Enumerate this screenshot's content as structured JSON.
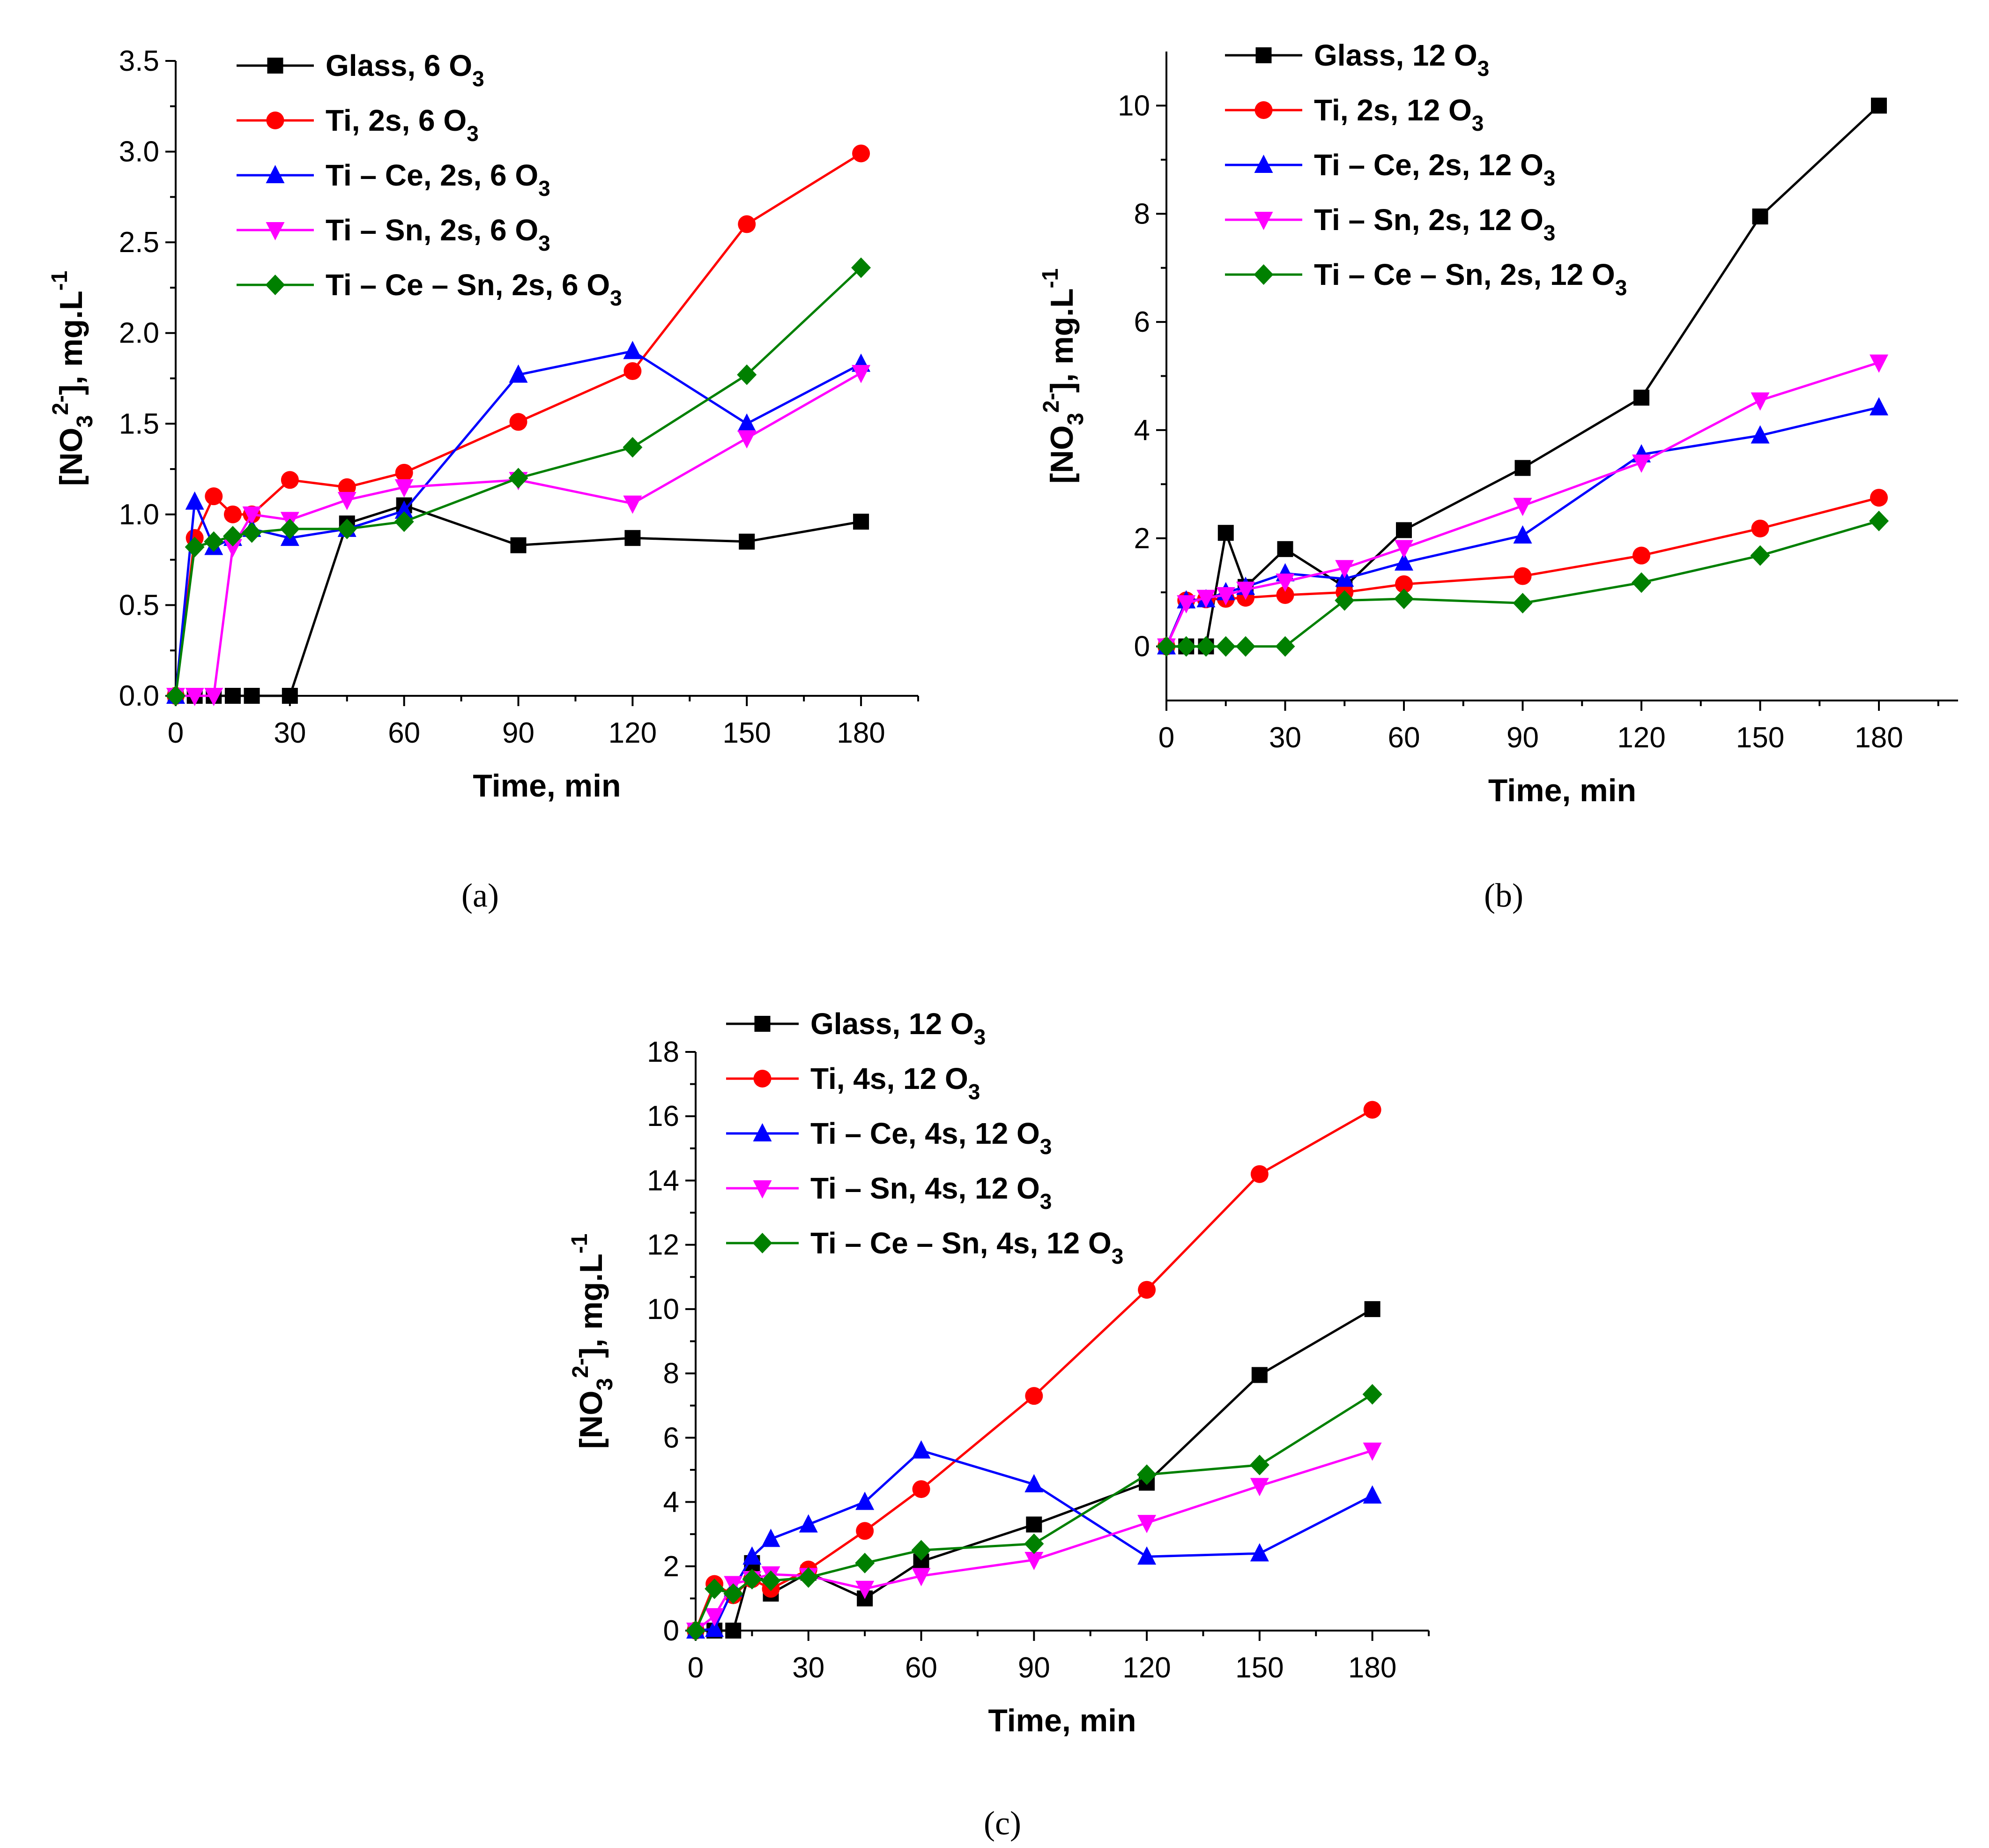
{
  "chart_data": [
    {
      "type": "line",
      "panel_label": "(a)",
      "xlabel": "Time, min",
      "ylabel": "[NO3 2-], mg.L-1",
      "ylabel_parts": [
        "[NO",
        "3",
        "2-",
        "], mg.L",
        "-1"
      ],
      "xlim": [
        0,
        195
      ],
      "ylim": [
        0,
        3.5
      ],
      "x_ticks": [
        0,
        30,
        60,
        90,
        120,
        150,
        180
      ],
      "y_ticks": [
        "0.0",
        "0.5",
        "1.0",
        "1.5",
        "2.0",
        "2.5",
        "3.0",
        "3.5"
      ],
      "legend_position": "top-left",
      "series": [
        {
          "name": "Glass, 6 O3",
          "legend_text": "Glass, 6 O",
          "legend_sub": "3",
          "color": "#000000",
          "marker": "square",
          "x": [
            0,
            5,
            10,
            15,
            20,
            30,
            45,
            60,
            90,
            120,
            150,
            180
          ],
          "y": [
            0,
            0,
            0,
            0,
            0,
            0,
            0.95,
            1.05,
            0.83,
            0.87,
            0.85,
            0.96
          ]
        },
        {
          "name": "Ti, 2s, 6 O3",
          "legend_text": "Ti, 2s, 6 O",
          "legend_sub": "3",
          "color": "#ff0000",
          "marker": "circle",
          "x": [
            0,
            5,
            10,
            15,
            20,
            30,
            45,
            60,
            90,
            120,
            150,
            180
          ],
          "y": [
            0,
            0.87,
            1.1,
            1.0,
            1.0,
            1.19,
            1.15,
            1.23,
            1.51,
            1.79,
            2.6,
            2.99
          ]
        },
        {
          "name": "Ti – Ce, 2s, 6 O3",
          "legend_text": "Ti – Ce, 2s, 6 O",
          "legend_sub": "3",
          "color": "#0000ff",
          "marker": "triangle-up",
          "x": [
            0,
            5,
            10,
            15,
            20,
            30,
            45,
            60,
            90,
            120,
            150,
            180
          ],
          "y": [
            0,
            1.07,
            0.82,
            0.87,
            0.92,
            0.87,
            0.92,
            1.02,
            1.77,
            1.9,
            1.5,
            1.83
          ]
        },
        {
          "name": "Ti – Sn, 2s, 6 O3",
          "legend_text": "Ti – Sn, 2s, 6 O",
          "legend_sub": "3",
          "color": "#ff00ff",
          "marker": "triangle-down",
          "x": [
            0,
            5,
            10,
            15,
            20,
            30,
            45,
            60,
            90,
            120,
            150,
            180
          ],
          "y": [
            0,
            0,
            0,
            0.82,
            1.0,
            0.97,
            1.08,
            1.15,
            1.19,
            1.06,
            1.42,
            1.78
          ]
        },
        {
          "name": "Ti – Ce – Sn, 2s, 6 O3",
          "legend_text": "Ti – Ce – Sn, 2s, 6 O",
          "legend_sub": "3",
          "color": "#008000",
          "marker": "diamond",
          "x": [
            0,
            5,
            10,
            15,
            20,
            30,
            45,
            60,
            90,
            120,
            150,
            180
          ],
          "y": [
            0,
            0.82,
            0.85,
            0.88,
            0.9,
            0.92,
            0.92,
            0.96,
            1.2,
            1.37,
            1.77,
            2.36
          ]
        }
      ]
    },
    {
      "type": "line",
      "panel_label": "(b)",
      "xlabel": "Time, min",
      "ylabel": "[NO3 2-], mg.L-1",
      "ylabel_parts": [
        "[NO",
        "3",
        "2-",
        "], mg.L",
        "-1"
      ],
      "xlim": [
        0,
        200
      ],
      "ylim": [
        -1,
        11
      ],
      "x_ticks": [
        0,
        30,
        60,
        90,
        120,
        150,
        180
      ],
      "y_ticks": [
        "0",
        "2",
        "4",
        "6",
        "8",
        "10"
      ],
      "legend_position": "top-left",
      "series": [
        {
          "name": "Glass, 12 O3",
          "legend_text": "Glass, 12 O",
          "legend_sub": "3",
          "color": "#000000",
          "marker": "square",
          "x": [
            0,
            5,
            10,
            15,
            20,
            30,
            45,
            60,
            90,
            120,
            150,
            180
          ],
          "y": [
            0,
            0,
            0,
            2.1,
            1.1,
            1.8,
            1.1,
            2.15,
            3.3,
            4.6,
            7.95,
            10.0
          ]
        },
        {
          "name": "Ti, 2s, 12 O3",
          "legend_text": "Ti, 2s, 12 O",
          "legend_sub": "3",
          "color": "#ff0000",
          "marker": "circle",
          "x": [
            0,
            5,
            10,
            15,
            20,
            30,
            45,
            60,
            90,
            120,
            150,
            180
          ],
          "y": [
            0,
            0.85,
            0.87,
            0.88,
            0.9,
            0.95,
            1.0,
            1.15,
            1.3,
            1.68,
            2.18,
            2.75
          ]
        },
        {
          "name": "Ti – Ce, 2s, 12 O3",
          "legend_text": "Ti – Ce, 2s, 12 O",
          "legend_sub": "3",
          "color": "#0000ff",
          "marker": "triangle-up",
          "x": [
            0,
            5,
            10,
            15,
            20,
            30,
            45,
            60,
            90,
            120,
            150,
            180
          ],
          "y": [
            0,
            0.85,
            0.87,
            1.0,
            1.1,
            1.35,
            1.25,
            1.55,
            2.05,
            3.55,
            3.9,
            4.42
          ]
        },
        {
          "name": "Ti – Sn, 2s, 12 O3",
          "legend_text": "Ti – Sn, 2s, 12 O",
          "legend_sub": "3",
          "color": "#ff00ff",
          "marker": "triangle-down",
          "x": [
            0,
            5,
            10,
            15,
            20,
            30,
            45,
            60,
            90,
            120,
            150,
            180
          ],
          "y": [
            0,
            0.8,
            0.9,
            0.95,
            1.05,
            1.2,
            1.45,
            1.82,
            2.6,
            3.4,
            4.55,
            5.25
          ]
        },
        {
          "name": "Ti – Ce – Sn, 2s, 12 O3",
          "legend_text": "Ti – Ce – Sn, 2s, 12 O",
          "legend_sub": "3",
          "color": "#008000",
          "marker": "diamond",
          "x": [
            0,
            5,
            10,
            15,
            20,
            30,
            45,
            60,
            90,
            120,
            150,
            180
          ],
          "y": [
            0,
            0,
            0,
            0,
            0,
            0,
            0.85,
            0.88,
            0.8,
            1.18,
            1.68,
            2.32
          ]
        }
      ]
    },
    {
      "type": "line",
      "panel_label": "(c)",
      "xlabel": "Time, min",
      "ylabel": "[NO3 2-], mg.L-1",
      "ylabel_parts": [
        "[NO",
        "3",
        "2-",
        "], mg.L",
        "-1"
      ],
      "xlim": [
        0,
        195
      ],
      "ylim": [
        0,
        18
      ],
      "x_ticks": [
        0,
        30,
        60,
        90,
        120,
        150,
        180
      ],
      "y_ticks": [
        "0",
        "2",
        "4",
        "6",
        "8",
        "10",
        "12",
        "14",
        "16",
        "18"
      ],
      "legend_position": "top-left",
      "series": [
        {
          "name": "Glass, 12 O3",
          "legend_text": "Glass, 12 O",
          "legend_sub": "3",
          "color": "#000000",
          "marker": "square",
          "x": [
            0,
            5,
            10,
            15,
            20,
            30,
            45,
            60,
            90,
            120,
            150,
            180
          ],
          "y": [
            0,
            0,
            0,
            2.1,
            1.15,
            1.8,
            1.0,
            2.15,
            3.3,
            4.6,
            7.95,
            10.0
          ]
        },
        {
          "name": "Ti, 4s, 12 O3",
          "legend_text": "Ti, 4s, 12 O",
          "legend_sub": "3",
          "color": "#ff0000",
          "marker": "circle",
          "x": [
            0,
            5,
            10,
            15,
            20,
            30,
            45,
            60,
            90,
            120,
            150,
            180
          ],
          "y": [
            0,
            1.45,
            1.1,
            1.6,
            1.3,
            1.9,
            3.1,
            4.4,
            7.3,
            10.6,
            14.2,
            16.2
          ]
        },
        {
          "name": "Ti – Ce, 4s, 12 O3",
          "legend_text": "Ti – Ce, 4s, 12 O",
          "legend_sub": "3",
          "color": "#0000ff",
          "marker": "triangle-up",
          "x": [
            0,
            5,
            10,
            15,
            20,
            30,
            45,
            60,
            90,
            120,
            150,
            180
          ],
          "y": [
            0,
            0.05,
            1.3,
            2.3,
            2.85,
            3.3,
            4.0,
            5.6,
            4.55,
            2.3,
            2.4,
            4.2
          ]
        },
        {
          "name": "Ti – Sn, 4s, 12 O3",
          "legend_text": "Ti – Sn, 4s, 12 O",
          "legend_sub": "3",
          "color": "#ff00ff",
          "marker": "triangle-down",
          "x": [
            0,
            5,
            10,
            15,
            20,
            30,
            45,
            60,
            90,
            120,
            150,
            180
          ],
          "y": [
            0,
            0.45,
            1.45,
            1.6,
            1.75,
            1.7,
            1.3,
            1.7,
            2.2,
            3.35,
            4.5,
            5.6
          ]
        },
        {
          "name": "Ti – Ce – Sn, 4s, 12 O3",
          "legend_text": "Ti – Ce – Sn, 4s, 12 O",
          "legend_sub": "3",
          "color": "#008000",
          "marker": "diamond",
          "x": [
            0,
            5,
            10,
            15,
            20,
            30,
            45,
            60,
            90,
            120,
            150,
            180
          ],
          "y": [
            0,
            1.3,
            1.15,
            1.6,
            1.55,
            1.65,
            2.1,
            2.5,
            2.7,
            4.85,
            5.15,
            7.35
          ]
        }
      ]
    }
  ]
}
